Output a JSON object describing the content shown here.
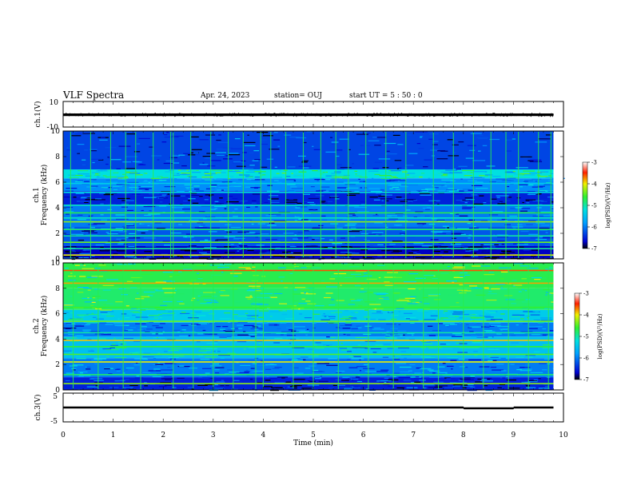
{
  "header": {
    "title": "VLF Spectra",
    "date": "Apr. 24, 2023",
    "station": "station= OUJ",
    "start": "start  UT =   5 : 50 : 0"
  },
  "chart_data": [
    {
      "type": "line",
      "panel": "ch1-waveform",
      "ylabel": "ch.1(V)",
      "ylim": [
        -10,
        10
      ],
      "yticks": [
        "10",
        "-10"
      ],
      "xlim": [
        0,
        10
      ],
      "series": [
        {
          "values": [
            {
              "t": 0.0,
              "v": -0.4
            },
            {
              "t": 1.0,
              "v": -0.4
            },
            {
              "t": 2.0,
              "v": -0.4
            },
            {
              "t": 3.0,
              "v": -0.4
            },
            {
              "t": 4.0,
              "v": -0.4
            },
            {
              "t": 5.0,
              "v": -0.4
            },
            {
              "t": 6.0,
              "v": -0.4
            },
            {
              "t": 7.0,
              "v": -0.4
            },
            {
              "t": 8.0,
              "v": -0.4
            },
            {
              "t": 9.0,
              "v": -0.4
            },
            {
              "t": 9.8,
              "v": -0.4
            }
          ]
        }
      ],
      "envelope_half_width": 1.0
    },
    {
      "type": "heatmap",
      "panel": "ch1-spectrogram",
      "ylabel": "ch.1",
      "ylabel2": "Frequency (kHz)",
      "xlim": [
        0,
        10
      ],
      "ylim": [
        0,
        10
      ],
      "yticks": [
        "0",
        "2",
        "4",
        "6",
        "8",
        "10"
      ],
      "colorbar": {
        "label": "log(PSD)(V²/Hz)",
        "range": [
          -7,
          -3
        ],
        "ticks": [
          "-3",
          "-4",
          "-5",
          "-6",
          "-7"
        ]
      },
      "bands": [
        {
          "f0": 0.0,
          "f1": 1.0,
          "logpsd": -6.7
        },
        {
          "f0": 1.0,
          "f1": 2.5,
          "logpsd": -6.2
        },
        {
          "f0": 2.5,
          "f1": 4.2,
          "logpsd": -6.0
        },
        {
          "f0": 4.2,
          "f1": 5.3,
          "logpsd": -6.5
        },
        {
          "f0": 5.3,
          "f1": 6.3,
          "logpsd": -5.9
        },
        {
          "f0": 6.3,
          "f1": 7.0,
          "logpsd": -5.2
        },
        {
          "f0": 7.0,
          "f1": 10.0,
          "logpsd": -6.3
        }
      ],
      "lines_khz": [
        {
          "f": 0.3,
          "logpsd": -4.0
        },
        {
          "f": 0.8,
          "logpsd": -5.0
        },
        {
          "f": 1.3,
          "logpsd": -4.4
        },
        {
          "f": 1.8,
          "logpsd": -5.0
        },
        {
          "f": 2.3,
          "logpsd": -4.8
        },
        {
          "f": 2.9,
          "logpsd": -4.3
        },
        {
          "f": 3.2,
          "logpsd": -5.1
        },
        {
          "f": 3.6,
          "logpsd": -4.7
        },
        {
          "f": 4.2,
          "logpsd": -5.1
        },
        {
          "f": 5.2,
          "logpsd": -5.3
        },
        {
          "f": 5.9,
          "logpsd": -5.4
        }
      ],
      "spikes_min": [
        0.15,
        0.55,
        0.95,
        1.25,
        1.45,
        1.8,
        2.15,
        2.2,
        2.55,
        2.95,
        3.3,
        3.6,
        3.95,
        4.15,
        4.45,
        4.8,
        5.15,
        5.45,
        5.7,
        6.05,
        6.45,
        6.85,
        7.4,
        7.8,
        8.2,
        8.55,
        8.85,
        9.1,
        9.5,
        9.75
      ]
    },
    {
      "type": "heatmap",
      "panel": "ch2-spectrogram",
      "ylabel": "ch.2",
      "ylabel2": "Frequency (kHz)",
      "xlim": [
        0,
        10
      ],
      "ylim": [
        0,
        10
      ],
      "yticks": [
        "0",
        "2",
        "4",
        "6",
        "8",
        "10"
      ],
      "colorbar": {
        "label": "log(PSD)(V²/Hz)",
        "range": [
          -7,
          -3
        ],
        "ticks": [
          "-3",
          "-4",
          "-5",
          "-6",
          "-7"
        ]
      },
      "bands": [
        {
          "f0": 0.0,
          "f1": 1.0,
          "logpsd": -6.5
        },
        {
          "f0": 1.0,
          "f1": 2.5,
          "logpsd": -6.0
        },
        {
          "f0": 2.5,
          "f1": 4.2,
          "logpsd": -5.5
        },
        {
          "f0": 4.2,
          "f1": 5.3,
          "logpsd": -6.0
        },
        {
          "f0": 5.3,
          "f1": 6.3,
          "logpsd": -5.4
        },
        {
          "f0": 6.3,
          "f1": 8.0,
          "logpsd": -4.8
        },
        {
          "f0": 8.0,
          "f1": 10.0,
          "logpsd": -4.7
        }
      ],
      "lines_khz": [
        {
          "f": 0.5,
          "logpsd": -4.3
        },
        {
          "f": 1.2,
          "logpsd": -4.8
        },
        {
          "f": 2.2,
          "logpsd": -4.0
        },
        {
          "f": 2.8,
          "logpsd": -4.5
        },
        {
          "f": 3.4,
          "logpsd": -4.6
        },
        {
          "f": 3.9,
          "logpsd": -3.9
        },
        {
          "f": 4.5,
          "logpsd": -5.0
        },
        {
          "f": 5.4,
          "logpsd": -4.4
        },
        {
          "f": 6.5,
          "logpsd": -4.6
        },
        {
          "f": 8.4,
          "logpsd": -3.8
        },
        {
          "f": 9.4,
          "logpsd": -3.6
        }
      ],
      "spikes_min": [
        0.2,
        0.7,
        1.2,
        1.55,
        2.2,
        2.6,
        3.0,
        3.4,
        3.85,
        4.0,
        4.6,
        5.0,
        5.5,
        6.1,
        6.6,
        7.2,
        7.5,
        8.0,
        8.4,
        8.9,
        9.3,
        9.7
      ]
    },
    {
      "type": "line",
      "panel": "ch3-waveform",
      "ylabel": "ch.3(V)",
      "ylim": [
        -5,
        5
      ],
      "yticks": [
        "5",
        "-5"
      ],
      "xlim": [
        0,
        10
      ],
      "xlabel": "Time (min)",
      "xticks": [
        "0",
        "1",
        "2",
        "3",
        "4",
        "5",
        "6",
        "7",
        "8",
        "9",
        "10"
      ],
      "series": [
        {
          "values": [
            {
              "t": 0.0,
              "v": 0.0
            },
            {
              "t": 8.0,
              "v": 0.0
            },
            {
              "t": 8.01,
              "v": -0.3
            },
            {
              "t": 9.0,
              "v": -0.3
            },
            {
              "t": 9.01,
              "v": 0.0
            },
            {
              "t": 9.8,
              "v": 0.0
            }
          ]
        }
      ],
      "envelope_half_width": 0.35
    }
  ]
}
